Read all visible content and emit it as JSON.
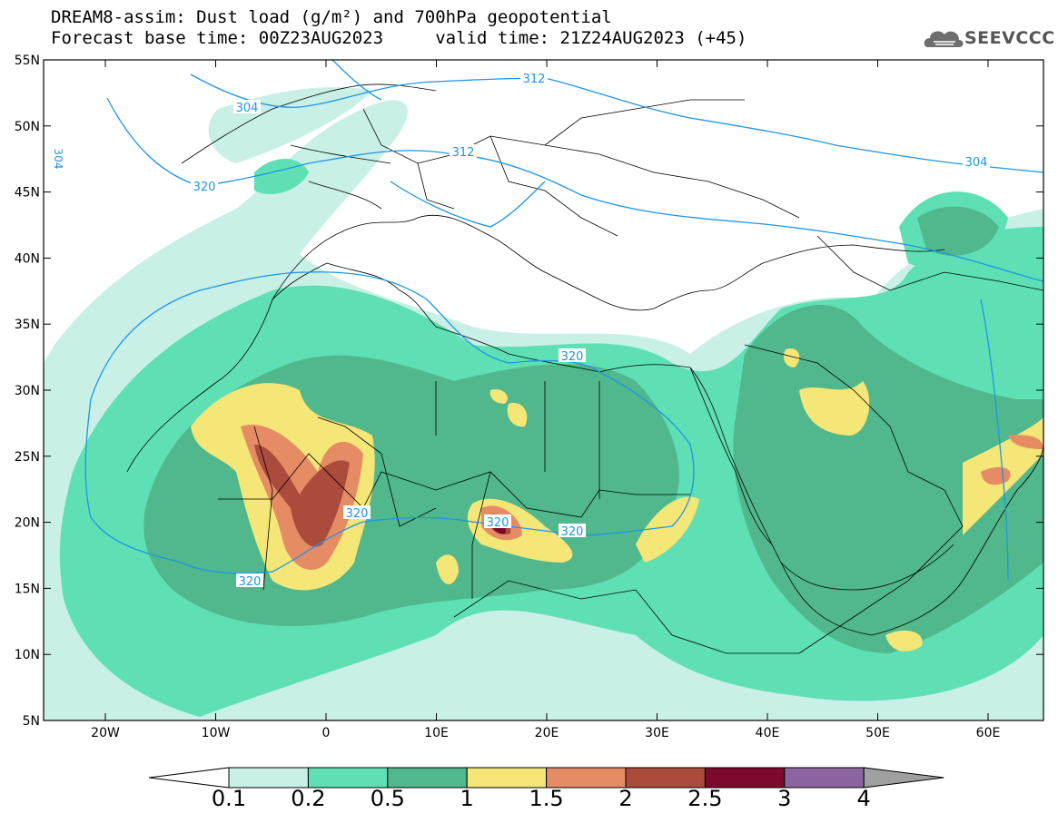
{
  "title": {
    "line1": "DREAM8-assim: Dust load (g/m²) and 700hPa geopotential",
    "line2": "Forecast base time: 00Z23AUG2023     valid time: 21Z24AUG2023 (+45)"
  },
  "logo": {
    "text": "SEEVCCC",
    "icon": "cloud-logo-icon"
  },
  "map": {
    "lat_labels": [
      "55N",
      "50N",
      "45N",
      "40N",
      "35N",
      "30N",
      "25N",
      "20N",
      "15N",
      "10N",
      "5N"
    ],
    "lon_labels": [
      "20W",
      "10W",
      "0",
      "10E",
      "20E",
      "30E",
      "40E",
      "50E",
      "60E"
    ],
    "contours": [
      {
        "label": "312",
        "level": 312
      },
      {
        "label": "304",
        "level": 304
      },
      {
        "label": "320",
        "level": 320
      },
      {
        "label": "312",
        "level": 312
      },
      {
        "label": "304",
        "level": 304
      },
      {
        "label": "320",
        "level": 320
      },
      {
        "label": "320",
        "level": 320
      },
      {
        "label": "320",
        "level": 320
      },
      {
        "label": "320",
        "level": 320
      },
      {
        "label": "320",
        "level": 320
      },
      {
        "label": "304",
        "level": 304
      }
    ]
  },
  "colorbar": {
    "labels": [
      "0.1",
      "0.2",
      "0.5",
      "1",
      "1.5",
      "2",
      "2.5",
      "3",
      "4"
    ],
    "colors": [
      "#c8f0e6",
      "#5ee0b4",
      "#50b88c",
      "#f5e678",
      "#e68c64",
      "#aa4b3c",
      "#7d0a2d",
      "#8c64a0"
    ],
    "under_color": "#ffffff",
    "over_color": "#a0a0a0"
  },
  "colors": {
    "contour": "#1e96e6",
    "dust_01": "#c8f0e6",
    "dust_02": "#5ee0b4",
    "dust_05": "#50b88c",
    "dust_1": "#f5e678",
    "dust_15": "#e68c64",
    "dust_2": "#aa4b3c",
    "dust_25": "#7d0a2d"
  }
}
